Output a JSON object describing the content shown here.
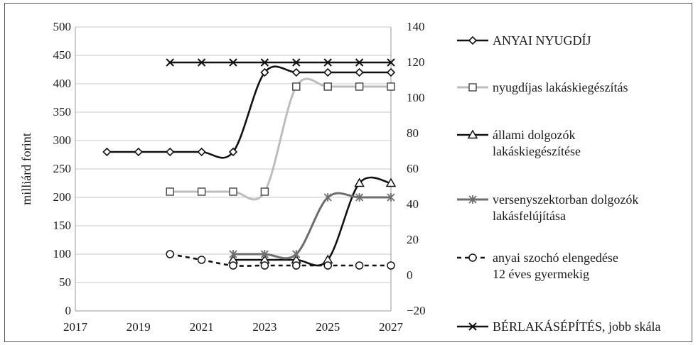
{
  "chart_data": {
    "type": "line",
    "x_axis": {
      "min": 2017,
      "max": 2027,
      "ticks": [
        2017,
        2019,
        2021,
        2023,
        2025,
        2027
      ]
    },
    "y_left": {
      "label": "milliárd forint",
      "min": 0,
      "max": 500,
      "ticks": [
        0,
        50,
        100,
        150,
        200,
        250,
        300,
        350,
        400,
        450,
        500
      ]
    },
    "y_right": {
      "min": -20,
      "max": 140,
      "ticks": [
        -20,
        0,
        20,
        40,
        60,
        80,
        100,
        120,
        140
      ],
      "tick_labels": [
        "−20",
        "0",
        "20",
        "40",
        "60",
        "80",
        "100",
        "120",
        "140"
      ]
    },
    "grid": "horizontal",
    "legend_position": "right",
    "series": [
      {
        "name": "ANYAI NYUGDÍJ",
        "axis": "left",
        "color": "#111111",
        "marker": "diamond",
        "points": [
          [
            2018,
            280
          ],
          [
            2019,
            280
          ],
          [
            2020,
            280
          ],
          [
            2021,
            280
          ],
          [
            2022,
            280
          ],
          [
            2023,
            420
          ],
          [
            2024,
            420
          ],
          [
            2025,
            420
          ],
          [
            2026,
            420
          ],
          [
            2027,
            420
          ]
        ]
      },
      {
        "name": "nyugdíjas lakáskiegészítás",
        "axis": "left",
        "color": "#bdbdbd",
        "marker": "square",
        "points": [
          [
            2020,
            210
          ],
          [
            2021,
            210
          ],
          [
            2022,
            210
          ],
          [
            2023,
            210
          ],
          [
            2024,
            395
          ],
          [
            2025,
            395
          ],
          [
            2026,
            395
          ],
          [
            2027,
            395
          ]
        ]
      },
      {
        "name": "állami dolgozók lakáskiegészítése",
        "name_lines": [
          "állami dolgozók",
          "lakáskiegészítése"
        ],
        "axis": "left",
        "color": "#111111",
        "marker": "triangle",
        "points": [
          [
            2022,
            90
          ],
          [
            2023,
            90
          ],
          [
            2024,
            90
          ],
          [
            2025,
            90
          ],
          [
            2026,
            225
          ],
          [
            2027,
            225
          ]
        ]
      },
      {
        "name": "versenyszektorban dolgozók lakásfelújítása",
        "name_lines": [
          "versenyszektorban dolgozók",
          "lakásfelújítása"
        ],
        "axis": "left",
        "color": "#6e6e6e",
        "marker": "asterisk",
        "points": [
          [
            2022,
            100
          ],
          [
            2023,
            100
          ],
          [
            2024,
            100
          ],
          [
            2025,
            200
          ],
          [
            2026,
            200
          ],
          [
            2027,
            200
          ]
        ]
      },
      {
        "name": "anyai szochó elengedése 12 éves gyermekig",
        "name_lines": [
          "anyai szochó elengedése",
          "12 éves gyermekig"
        ],
        "axis": "left",
        "color": "#111111",
        "marker": "circle",
        "dashed": true,
        "points": [
          [
            2020,
            100
          ],
          [
            2021,
            90
          ],
          [
            2022,
            80
          ],
          [
            2023,
            80
          ],
          [
            2024,
            80
          ],
          [
            2025,
            80
          ],
          [
            2026,
            80
          ],
          [
            2027,
            80
          ]
        ]
      },
      {
        "name": "BÉRLAKÁSÉPÍTÉS, jobb skála",
        "axis": "right",
        "color": "#111111",
        "marker": "x",
        "points": [
          [
            2020,
            120
          ],
          [
            2021,
            120
          ],
          [
            2022,
            120
          ],
          [
            2023,
            120
          ],
          [
            2024,
            120
          ],
          [
            2025,
            120
          ],
          [
            2026,
            120
          ],
          [
            2027,
            120
          ]
        ]
      }
    ]
  }
}
